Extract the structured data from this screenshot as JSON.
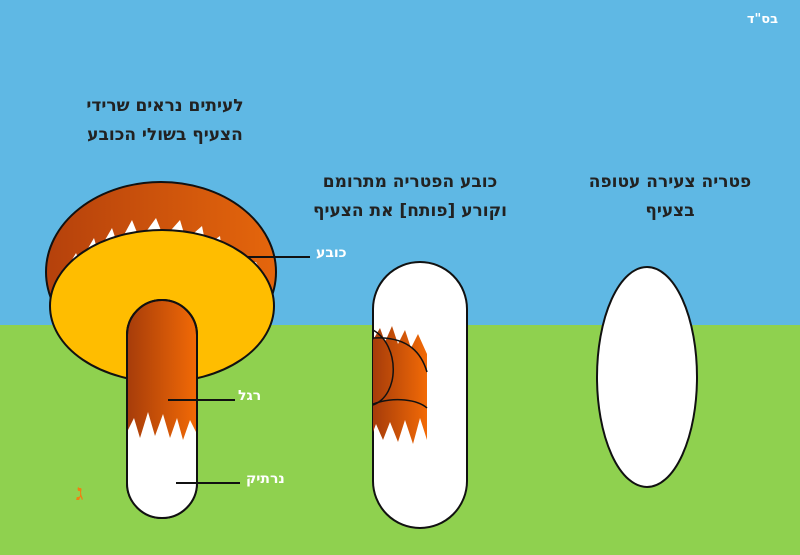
{
  "corner_mark": "בס\"ד",
  "stages": [
    {
      "lines": [
        "לעיתים נראים שרידי",
        "הצעיף בשולי הכובע"
      ]
    },
    {
      "lines": [
        "כובע הפטריה מתרומם",
        "וקורע [פותח] את הצעיף"
      ]
    },
    {
      "lines": [
        "פטריה צעירה עטופה",
        "בצעיף"
      ]
    }
  ],
  "labels": {
    "cap": "כובע",
    "stem": "רגל",
    "volva": "נרתיק"
  },
  "colors": {
    "sky": "#5fb8e4",
    "grass": "#8fd14f",
    "cap_orange": "#e5660c",
    "cap_dark": "#b5410c",
    "cap_yellow": "#ffbd00",
    "veil_white": "#ffffff",
    "line": "#111111"
  }
}
